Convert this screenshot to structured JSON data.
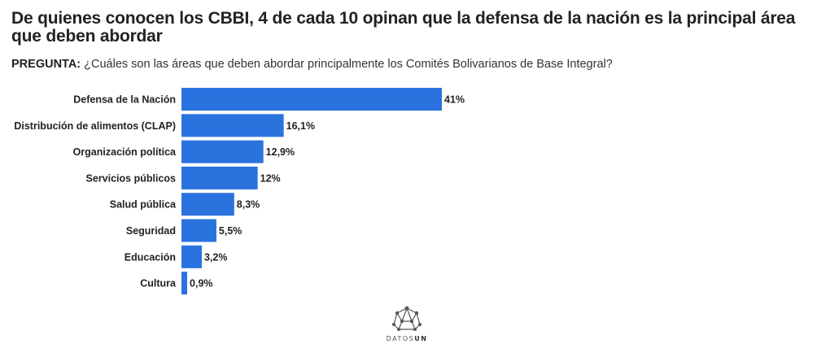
{
  "header": {
    "title": "De quienes conocen los CBBI, 4 de cada 10 opinan que la defensa de la nación es la principal área que deben abordar",
    "question_label": "PREGUNTA:",
    "question_text": " ¿Cuáles son las áreas que deben abordar principalmente los Comités Bolivarianos de Base Integral?"
  },
  "brand": {
    "name_a": "DATOS",
    "name_b": "UN",
    "icon": "network-logo-icon"
  },
  "colors": {
    "bar": "#2a72de"
  },
  "chart_data": {
    "type": "bar",
    "orientation": "horizontal",
    "categories": [
      "Defensa de la Nación",
      "Distribución de alimentos (CLAP)",
      "Organización política",
      "Servicios públicos",
      "Salud pública",
      "Seguridad",
      "Educación",
      "Cultura"
    ],
    "values": [
      41,
      16.1,
      12.9,
      12,
      8.3,
      5.5,
      3.2,
      0.9
    ],
    "value_labels": [
      "41%",
      "16,1%",
      "12,9%",
      "12%",
      "8,3%",
      "5,5%",
      "3,2%",
      "0,9%"
    ],
    "unit": "%",
    "grid": false,
    "legend": "none"
  }
}
